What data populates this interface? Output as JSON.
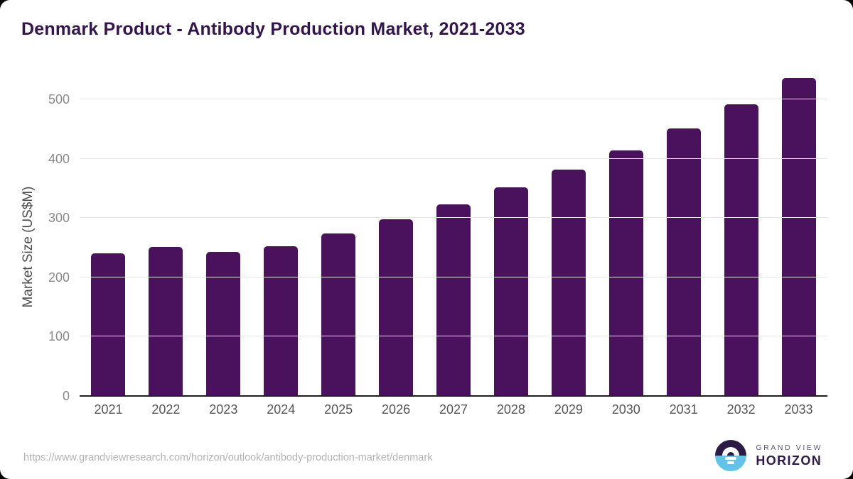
{
  "title": "Denmark Product - Antibody Production Market, 2021-2033",
  "chart_data": {
    "type": "bar",
    "title": "Denmark Product - Antibody Production Market, 2021-2033",
    "categories": [
      "2021",
      "2022",
      "2023",
      "2024",
      "2025",
      "2026",
      "2027",
      "2028",
      "2029",
      "2030",
      "2031",
      "2032",
      "2033"
    ],
    "values": [
      241,
      251,
      243,
      252,
      274,
      298,
      323,
      352,
      381,
      414,
      451,
      492,
      536
    ],
    "xlabel": "",
    "ylabel": "Market Size (US$M)",
    "ylim": [
      0,
      500
    ],
    "yticks": [
      0,
      100,
      200,
      300,
      400,
      500
    ],
    "grid": true,
    "legend": "none",
    "bar_color": "#4a115c"
  },
  "colors": {
    "title": "#33154e",
    "bar": "#4a115c",
    "gridline": "#e7e7e7",
    "axis_line": "#1f1f1f",
    "background": "#ffffff",
    "page_background": "#000000",
    "logo_top_half": "#2b1b45",
    "logo_bottom_half": "#62c3e8"
  },
  "footer": {
    "source_url": "https://www.grandviewresearch.com/horizon/outlook/antibody-production-market/denmark",
    "logo": {
      "brand_top": "GRAND VIEW",
      "brand_bottom": "HORIZON"
    }
  }
}
